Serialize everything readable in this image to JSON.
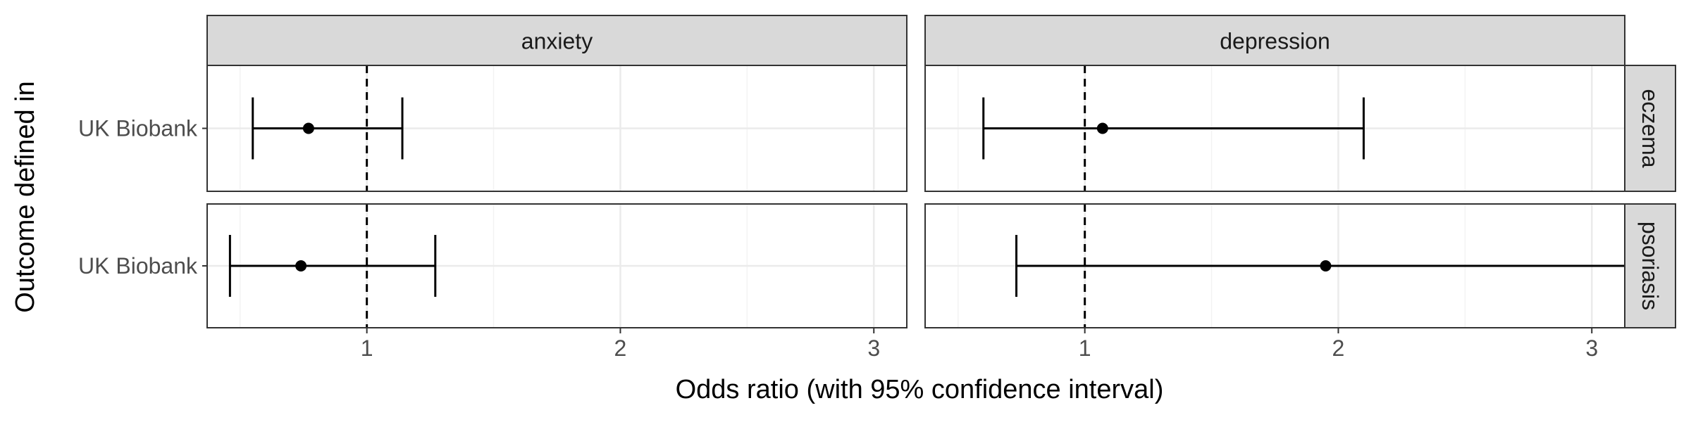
{
  "chart_data": {
    "type": "forest",
    "facet_columns": [
      "anxiety",
      "depression"
    ],
    "facet_rows": [
      "eczema",
      "psoriasis"
    ],
    "xlabel": "Odds ratio (with 95% confidence interval)",
    "ylabel": "Outcome defined in",
    "xlim": [
      0.37,
      3.13
    ],
    "x_ticks": [
      1,
      2,
      3
    ],
    "x_tick_labels": [
      "1",
      "2",
      "3"
    ],
    "reference_line": 1,
    "grid": true,
    "panels": [
      {
        "column": "anxiety",
        "row": "eczema",
        "label": "UK Biobank",
        "or": 0.77,
        "lower": 0.55,
        "upper": 1.14
      },
      {
        "column": "depression",
        "row": "eczema",
        "label": "UK Biobank",
        "or": 1.07,
        "lower": 0.6,
        "upper": 2.1
      },
      {
        "column": "anxiety",
        "row": "psoriasis",
        "label": "UK Biobank",
        "or": 0.74,
        "lower": 0.46,
        "upper": 1.27
      },
      {
        "column": "depression",
        "row": "psoriasis",
        "label": "UK Biobank",
        "or": 1.95,
        "lower": 0.73,
        "upper": 3.13
      }
    ],
    "colors": {
      "strip_fill": "#d9d9d9",
      "panel_border": "#333333",
      "grid_major": "#ebebeb",
      "grid_minor": "#f3f3f3",
      "mark": "#000000",
      "tick_text": "#4d4d4d",
      "title_text": "#000000"
    }
  }
}
